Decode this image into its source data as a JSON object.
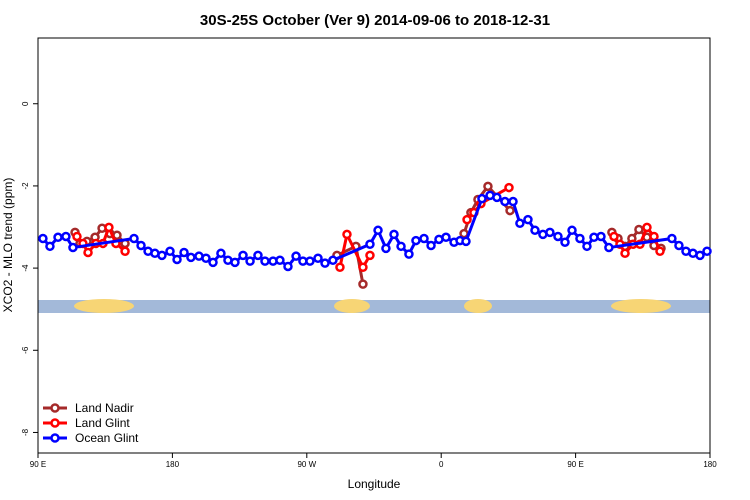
{
  "chart_data": {
    "type": "line",
    "title": "30S-25S October (Ver 9)   2014-09-06 to 2018-12-31",
    "x_label": "Longitude",
    "y_label": "XCO2 - MLO trend (ppm)",
    "xlim": [
      90,
      540
    ],
    "ylim": [
      -8.5,
      1.6
    ],
    "xticks": [
      {
        "value": 90,
        "label": "90 E"
      },
      180,
      {
        "value": 270,
        "label": "90 W"
      },
      {
        "value": 360,
        "label": "0"
      },
      {
        "value": 450,
        "label": "90 E"
      },
      {
        "value": 540,
        "label": "180"
      }
    ],
    "yticks": [
      0,
      -2,
      -4,
      -6,
      -8
    ],
    "legend": "bottom-left",
    "series": [
      {
        "name": "Land Nadir",
        "color": "#a52a2a",
        "x": [
          114.8,
          118.1,
          122.8,
          128.2,
          132.9,
          138.2,
          142.9,
          148.3,
          null,
          290.2,
          302.9,
          307.6,
          null,
          375.3,
          379.9,
          384.6,
          391.3,
          406.1,
          null,
          474.3,
          478.4,
          483.1,
          487.7,
          492.4,
          497.8,
          502.5,
          507.2
        ],
        "values": [
          -3.13,
          -3.4,
          -3.35,
          -3.25,
          -3.03,
          -3.16,
          -3.2,
          -3.4,
          null,
          -3.69,
          -3.47,
          -4.39,
          null,
          -3.16,
          -2.65,
          -2.33,
          -2.01,
          -2.6,
          null,
          -3.13,
          -3.28,
          -3.47,
          -3.28,
          -3.06,
          -3.25,
          -3.45,
          -3.52
        ]
      },
      {
        "name": "Land Glint",
        "color": "#ff0000",
        "x": [
          116.1,
          120.1,
          123.5,
          128.8,
          133.5,
          137.5,
          142.2,
          148.3,
          null,
          292.2,
          296.9,
          307.6,
          312.3,
          null,
          377.3,
          381.9,
          386.6,
          405.4,
          null,
          475.7,
          479.7,
          483.1,
          488.4,
          493.1,
          497.8,
          502.5,
          506.5
        ],
        "values": [
          -3.23,
          -3.4,
          -3.62,
          -3.4,
          -3.4,
          -3.01,
          -3.4,
          -3.59,
          null,
          -3.98,
          -3.18,
          -3.98,
          -3.69,
          null,
          -2.82,
          -2.65,
          -2.43,
          -2.04,
          null,
          -3.23,
          -3.42,
          -3.64,
          -3.42,
          -3.42,
          -3.01,
          -3.23,
          -3.59
        ]
      },
      {
        "name": "Ocean Glint",
        "color": "#0000ff",
        "x": [
          93.3,
          98.0,
          103.4,
          108.7,
          113.4,
          154.3,
          159.0,
          163.7,
          168.3,
          173.0,
          178.4,
          183.1,
          187.8,
          192.4,
          197.8,
          202.5,
          207.2,
          212.5,
          217.2,
          221.9,
          227.3,
          232.0,
          237.3,
          242.0,
          247.4,
          252.0,
          257.4,
          262.8,
          267.4,
          272.1,
          277.5,
          282.2,
          287.5,
          312.3,
          317.7,
          323.0,
          328.4,
          333.1,
          338.4,
          343.1,
          348.5,
          353.2,
          358.5,
          363.2,
          368.6,
          372.6,
          376.6,
          387.3,
          392.7,
          397.3,
          402.7,
          408.1,
          412.7,
          418.1,
          422.8,
          428.1,
          432.8,
          438.2,
          442.9,
          447.6,
          452.9,
          457.6,
          462.3,
          467.0,
          472.3,
          514.5,
          519.2,
          523.9,
          528.6,
          533.3,
          538.0
        ],
        "values": [
          -3.28,
          -3.47,
          -3.25,
          -3.23,
          -3.5,
          -3.28,
          -3.45,
          -3.59,
          -3.64,
          -3.69,
          -3.59,
          -3.79,
          -3.62,
          -3.74,
          -3.71,
          -3.76,
          -3.86,
          -3.64,
          -3.81,
          -3.86,
          -3.69,
          -3.83,
          -3.69,
          -3.83,
          -3.83,
          -3.81,
          -3.96,
          -3.71,
          -3.83,
          -3.83,
          -3.76,
          -3.88,
          -3.81,
          -3.42,
          -3.08,
          -3.52,
          -3.18,
          -3.47,
          -3.66,
          -3.33,
          -3.28,
          -3.45,
          -3.3,
          -3.25,
          -3.37,
          -3.33,
          -3.35,
          -2.31,
          -2.23,
          -2.28,
          -2.38,
          -2.38,
          -2.91,
          -2.82,
          -3.08,
          -3.18,
          -3.13,
          -3.23,
          -3.37,
          -3.08,
          -3.28,
          -3.47,
          -3.25,
          -3.23,
          -3.5,
          -3.28,
          -3.45,
          -3.59,
          -3.64,
          -3.69,
          -3.59
        ]
      }
    ]
  }
}
